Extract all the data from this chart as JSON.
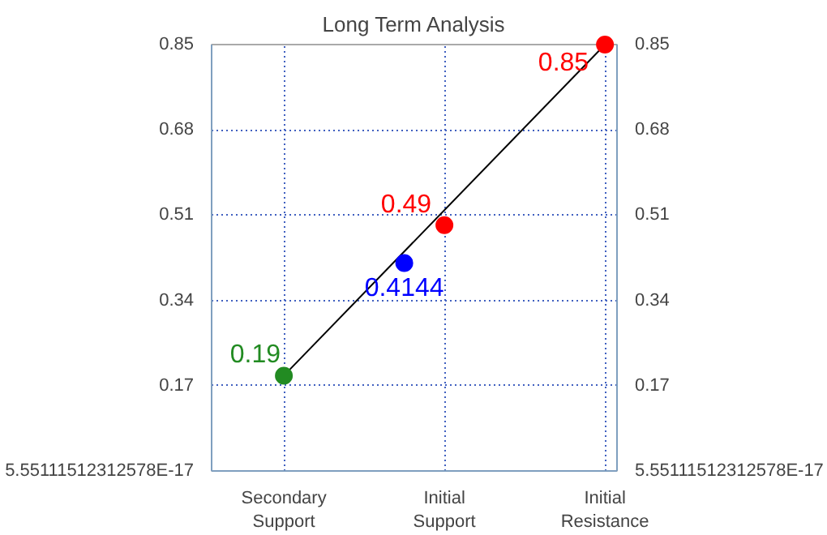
{
  "chart_data": {
    "type": "line",
    "title": "Long Term Analysis",
    "categories": [
      "Secondary\nSupport",
      null,
      null,
      null,
      "Initial\nSupport",
      null,
      null,
      null,
      "Initial\nResistance"
    ],
    "ylim": [
      0,
      0.85
    ],
    "yticks": [
      {
        "value": 5.55111512312578e-17,
        "label": "5.55111512312578E-17"
      },
      0.17,
      0.34,
      0.51,
      0.68,
      0.85
    ],
    "y2lim": [
      0,
      0.85
    ],
    "y2ticks": [
      {
        "value": 5.55111512312578e-17,
        "label": "5.55111512312578E-17"
      },
      0.17,
      0.34,
      0.51,
      0.68,
      0.85
    ],
    "grid": true,
    "marker": "circle",
    "series": [
      {
        "color": "#000000",
        "values": [
          0.19,
          null,
          null,
          null,
          null,
          null,
          null,
          null,
          0.85
        ],
        "marker": "none"
      },
      {
        "type": "scatter",
        "color": "#228b22",
        "values": [
          0.19,
          null,
          null,
          null,
          null,
          null,
          null,
          null,
          null
        ],
        "value_labels": [
          "0.19",
          null,
          null,
          null,
          null,
          null,
          null,
          null,
          null
        ]
      },
      {
        "type": "scatter",
        "color": "#0000ff",
        "values": [
          null,
          null,
          null,
          0.4144,
          null,
          null,
          null,
          null,
          null
        ],
        "value_labels": [
          null,
          null,
          null,
          "0.4144",
          null,
          null,
          null,
          null,
          null
        ]
      },
      {
        "type": "scatter",
        "color": "#ff0000",
        "values": [
          null,
          null,
          null,
          null,
          0.49,
          null,
          null,
          null,
          0.85
        ],
        "value_labels": [
          null,
          null,
          null,
          null,
          "0.49",
          null,
          null,
          null,
          "0.85"
        ]
      }
    ]
  }
}
